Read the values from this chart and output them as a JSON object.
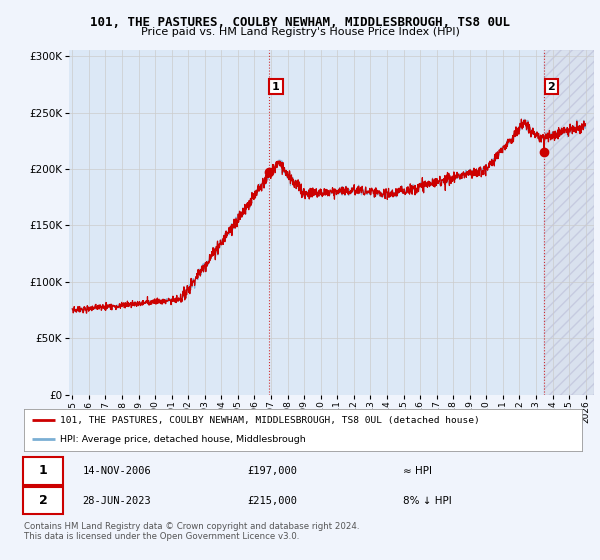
{
  "title": "101, THE PASTURES, COULBY NEWHAM, MIDDLESBROUGH, TS8 0UL",
  "subtitle": "Price paid vs. HM Land Registry's House Price Index (HPI)",
  "legend_line1": "101, THE PASTURES, COULBY NEWHAM, MIDDLESBROUGH, TS8 0UL (detached house)",
  "legend_line2": "HPI: Average price, detached house, Middlesbrough",
  "annotation1": {
    "label": "1",
    "date_str": "14-NOV-2006",
    "price": "£197,000",
    "note": "≈ HPI",
    "year": 2006.875
  },
  "annotation2": {
    "label": "2",
    "date_str": "28-JUN-2023",
    "price": "£215,000",
    "note": "8% ↓ HPI",
    "year": 2023.49
  },
  "footer": "Contains HM Land Registry data © Crown copyright and database right 2024.\nThis data is licensed under the Open Government Licence v3.0.",
  "hpi_color": "#7bafd4",
  "price_color": "#cc0000",
  "annotation_color": "#cc0000",
  "dot_color": "#cc0000",
  "ylim": [
    0,
    305000
  ],
  "xlim_start": 1994.8,
  "xlim_end": 2026.5,
  "fig_bg": "#f0f4fc",
  "plot_bg": "#dce8f6",
  "hatch_bg": "#e8eaf0"
}
